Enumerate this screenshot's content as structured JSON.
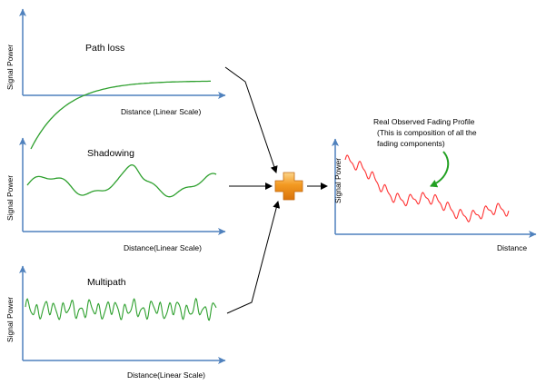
{
  "colors": {
    "axis": "#4f81bd",
    "component_curve": "#2ea02e",
    "observed_curve": "#ff3333",
    "plus_fill": "#f29421",
    "arrow": "#000000",
    "note_arrow": "#22a022"
  },
  "panels": {
    "path_loss": {
      "title": "Path loss",
      "xlabel": "Distance (Linear Scale)",
      "ylabel": "Signal Power"
    },
    "shadowing": {
      "title": "Shadowing",
      "xlabel": "Distance(Linear Scale)",
      "ylabel": "Signal Power"
    },
    "multipath": {
      "title": "Multipath",
      "xlabel": "Distance(Linear Scale)",
      "ylabel": "Signal Power"
    },
    "observed": {
      "xlabel": "Distance",
      "ylabel": "Signal Power",
      "note_lines": [
        "Real Observed Fading Profile",
        "(This is composition of all the",
        "fading components)"
      ]
    }
  },
  "combiner": {
    "icon": "plus-icon"
  }
}
